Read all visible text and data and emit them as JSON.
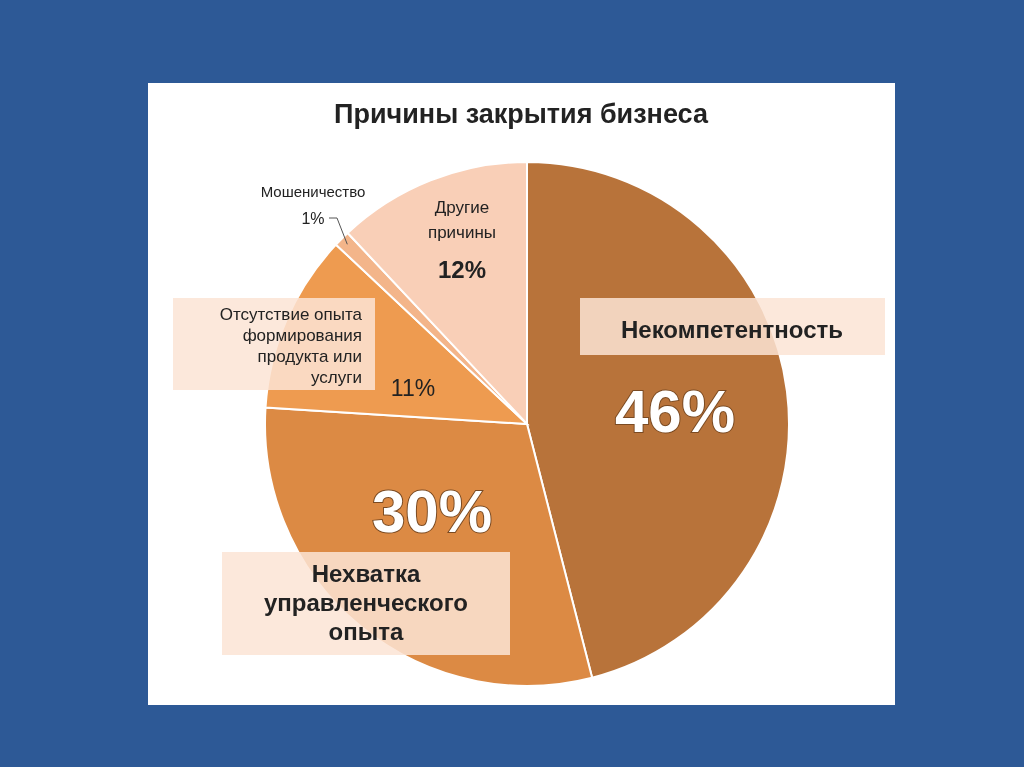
{
  "chart_data": {
    "type": "pie",
    "title": "Причины закрытия бизнеса",
    "categories": [
      "Некомпетентность",
      "Нехватка управленческого опыта",
      "Отсутствие опыта формирования продукта или услуги",
      "Мошеничество",
      "Другие причины"
    ],
    "values": [
      46,
      30,
      11,
      1,
      12
    ],
    "value_labels": [
      "46%",
      "30%",
      "11%",
      "1%",
      "12%"
    ],
    "colors": [
      "#b8733a",
      "#dc8a44",
      "#ee9b50",
      "#f3b58a",
      "#f9cfb7"
    ]
  }
}
